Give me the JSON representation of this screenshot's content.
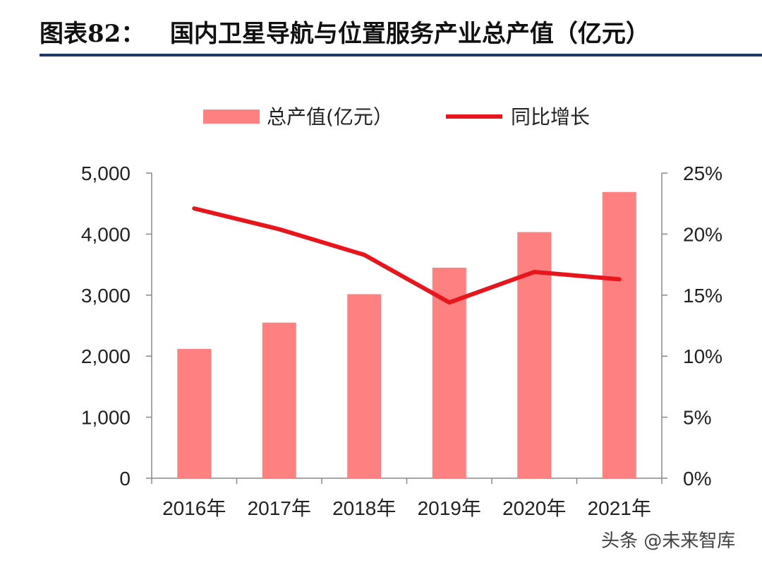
{
  "title": "图表82：   国内卫星导航与位置服务产业总产值（亿元）",
  "watermark": "头条 @未来智库",
  "colors": {
    "bar": "#ff8080",
    "line": "#e8161c",
    "rule": "#1f3864"
  },
  "chart_data": {
    "type": "bar+line",
    "categories": [
      "2016年",
      "2017年",
      "2018年",
      "2019年",
      "2020年",
      "2021年"
    ],
    "series": [
      {
        "name": "总产值(亿元）",
        "type": "bar",
        "axis": "left",
        "values": [
          2118,
          2550,
          3016,
          3450,
          4033,
          4690
        ]
      },
      {
        "name": "同比增长",
        "type": "line",
        "axis": "right",
        "values": [
          22.1,
          20.4,
          18.3,
          14.4,
          16.9,
          16.3
        ]
      }
    ],
    "left_axis": {
      "ylim": [
        0,
        5000
      ],
      "ticks": [
        "0",
        "1,000",
        "2,000",
        "3,000",
        "4,000",
        "5,000"
      ]
    },
    "right_axis": {
      "ylim": [
        0,
        25
      ],
      "ticks": [
        "0%",
        "5%",
        "10%",
        "15%",
        "20%",
        "25%"
      ]
    },
    "legend": "top-center",
    "grid": false
  }
}
